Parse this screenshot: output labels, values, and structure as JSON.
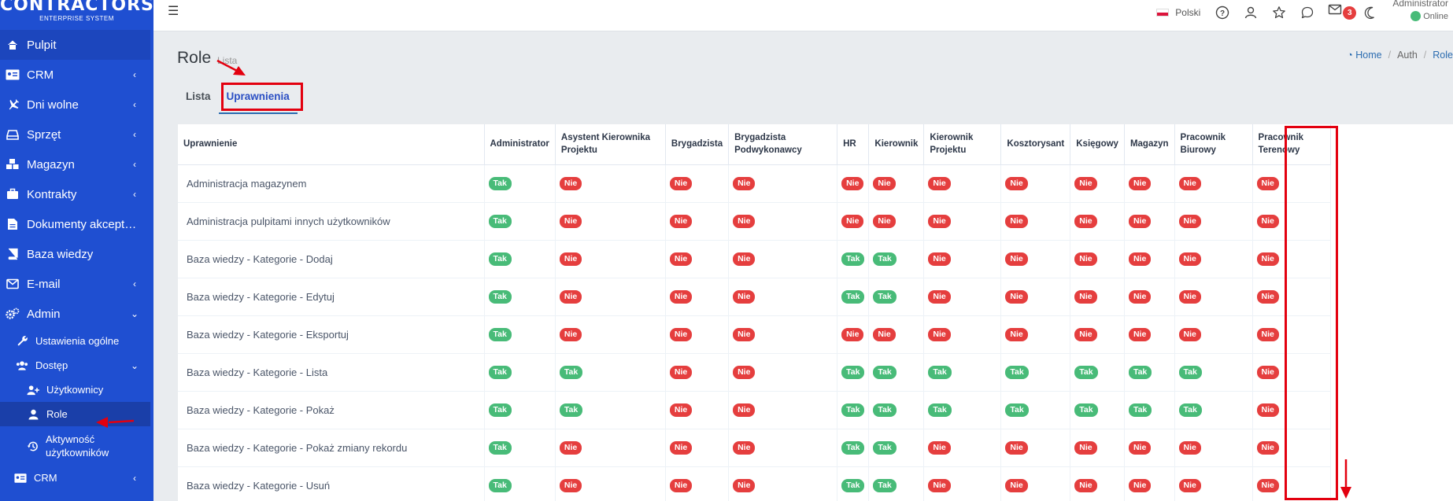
{
  "brand": {
    "name": "CONTRACTORS",
    "tagline": "ENTERPRISE SYSTEM"
  },
  "sidebar": {
    "items": [
      {
        "label": "Pulpit",
        "icon": "home-icon",
        "active": true,
        "chevron": ""
      },
      {
        "label": "CRM",
        "icon": "address-card-icon",
        "chevron": "‹"
      },
      {
        "label": "Dni wolne",
        "icon": "plane-icon",
        "chevron": "‹"
      },
      {
        "label": "Sprzęt",
        "icon": "hdd-icon",
        "chevron": "‹"
      },
      {
        "label": "Magazyn",
        "icon": "cubes-icon",
        "chevron": "‹"
      },
      {
        "label": "Kontrakty",
        "icon": "briefcase-icon",
        "chevron": "‹"
      },
      {
        "label": "Dokumenty akcept…",
        "icon": "file-icon",
        "chevron": ""
      },
      {
        "label": "Baza wiedzy",
        "icon": "book-icon",
        "chevron": ""
      },
      {
        "label": "E-mail",
        "icon": "envelope-icon",
        "chevron": "‹"
      },
      {
        "label": "Admin",
        "icon": "cogs-icon",
        "chevron": "⌄"
      }
    ],
    "admin_sub": [
      {
        "label": "Ustawienia ogólne",
        "icon": "wrench-icon"
      },
      {
        "label": "Dostęp",
        "icon": "users-icon",
        "chevron": "⌄"
      }
    ],
    "dostep_sub": [
      {
        "label": "Użytkownicy",
        "icon": "user-plus-icon"
      },
      {
        "label": "Role",
        "icon": "user-icon",
        "active": true
      },
      {
        "label": "Aktywność użytkowników",
        "icon": "history-icon"
      }
    ],
    "bottom_item": {
      "label": "CRM",
      "icon": "address-card-icon",
      "chevron": "‹"
    }
  },
  "topbar": {
    "language": "Polski",
    "mail_count": "3",
    "user_name": "Administrator",
    "user_status": "Online"
  },
  "page": {
    "title": "Role",
    "subtitle": "Lista",
    "breadcrumb": [
      "Home",
      "Auth",
      "Role"
    ]
  },
  "tabs": [
    {
      "label": "Lista",
      "active": false
    },
    {
      "label": "Uprawnienia",
      "active": true
    }
  ],
  "table": {
    "columns": [
      "Uprawnienie",
      "Administrator",
      "Asystent Kierownika Projektu",
      "Brygadzista",
      "Brygadzista Podwykonawcy",
      "HR",
      "Kierownik",
      "Kierownik Projektu",
      "Kosztorysant",
      "Księgowy",
      "Magazyn",
      "Pracownik Biurowy",
      "Pracownik Terenowy"
    ],
    "rows": [
      {
        "name": "Administracja magazynem",
        "values": [
          "Tak",
          "Nie",
          "Nie",
          "Nie",
          "Nie",
          "Nie",
          "Nie",
          "Nie",
          "Nie",
          "Nie",
          "Nie",
          "Nie"
        ]
      },
      {
        "name": "Administracja pulpitami innych użytkowników",
        "values": [
          "Tak",
          "Nie",
          "Nie",
          "Nie",
          "Nie",
          "Nie",
          "Nie",
          "Nie",
          "Nie",
          "Nie",
          "Nie",
          "Nie"
        ]
      },
      {
        "name": "Baza wiedzy - Kategorie - Dodaj",
        "values": [
          "Tak",
          "Nie",
          "Nie",
          "Nie",
          "Tak",
          "Tak",
          "Nie",
          "Nie",
          "Nie",
          "Nie",
          "Nie",
          "Nie"
        ]
      },
      {
        "name": "Baza wiedzy - Kategorie - Edytuj",
        "values": [
          "Tak",
          "Nie",
          "Nie",
          "Nie",
          "Tak",
          "Tak",
          "Nie",
          "Nie",
          "Nie",
          "Nie",
          "Nie",
          "Nie"
        ]
      },
      {
        "name": "Baza wiedzy - Kategorie - Eksportuj",
        "values": [
          "Tak",
          "Nie",
          "Nie",
          "Nie",
          "Nie",
          "Nie",
          "Nie",
          "Nie",
          "Nie",
          "Nie",
          "Nie",
          "Nie"
        ]
      },
      {
        "name": "Baza wiedzy - Kategorie - Lista",
        "values": [
          "Tak",
          "Tak",
          "Nie",
          "Nie",
          "Tak",
          "Tak",
          "Tak",
          "Tak",
          "Tak",
          "Tak",
          "Tak",
          "Nie"
        ]
      },
      {
        "name": "Baza wiedzy - Kategorie - Pokaż",
        "values": [
          "Tak",
          "Tak",
          "Nie",
          "Nie",
          "Tak",
          "Tak",
          "Tak",
          "Tak",
          "Tak",
          "Tak",
          "Tak",
          "Nie"
        ]
      },
      {
        "name": "Baza wiedzy - Kategorie - Pokaż zmiany rekordu",
        "values": [
          "Tak",
          "Nie",
          "Nie",
          "Nie",
          "Tak",
          "Tak",
          "Nie",
          "Nie",
          "Nie",
          "Nie",
          "Nie",
          "Nie"
        ]
      },
      {
        "name": "Baza wiedzy - Kategorie - Usuń",
        "values": [
          "Tak",
          "Nie",
          "Nie",
          "Nie",
          "Tak",
          "Tak",
          "Nie",
          "Nie",
          "Nie",
          "Nie",
          "Nie",
          "Nie"
        ]
      }
    ]
  },
  "colors": {
    "sidebar": "#1f4fd1",
    "tak": "#48bb78",
    "nie": "#e53e3e",
    "annotation": "#e3000f"
  }
}
